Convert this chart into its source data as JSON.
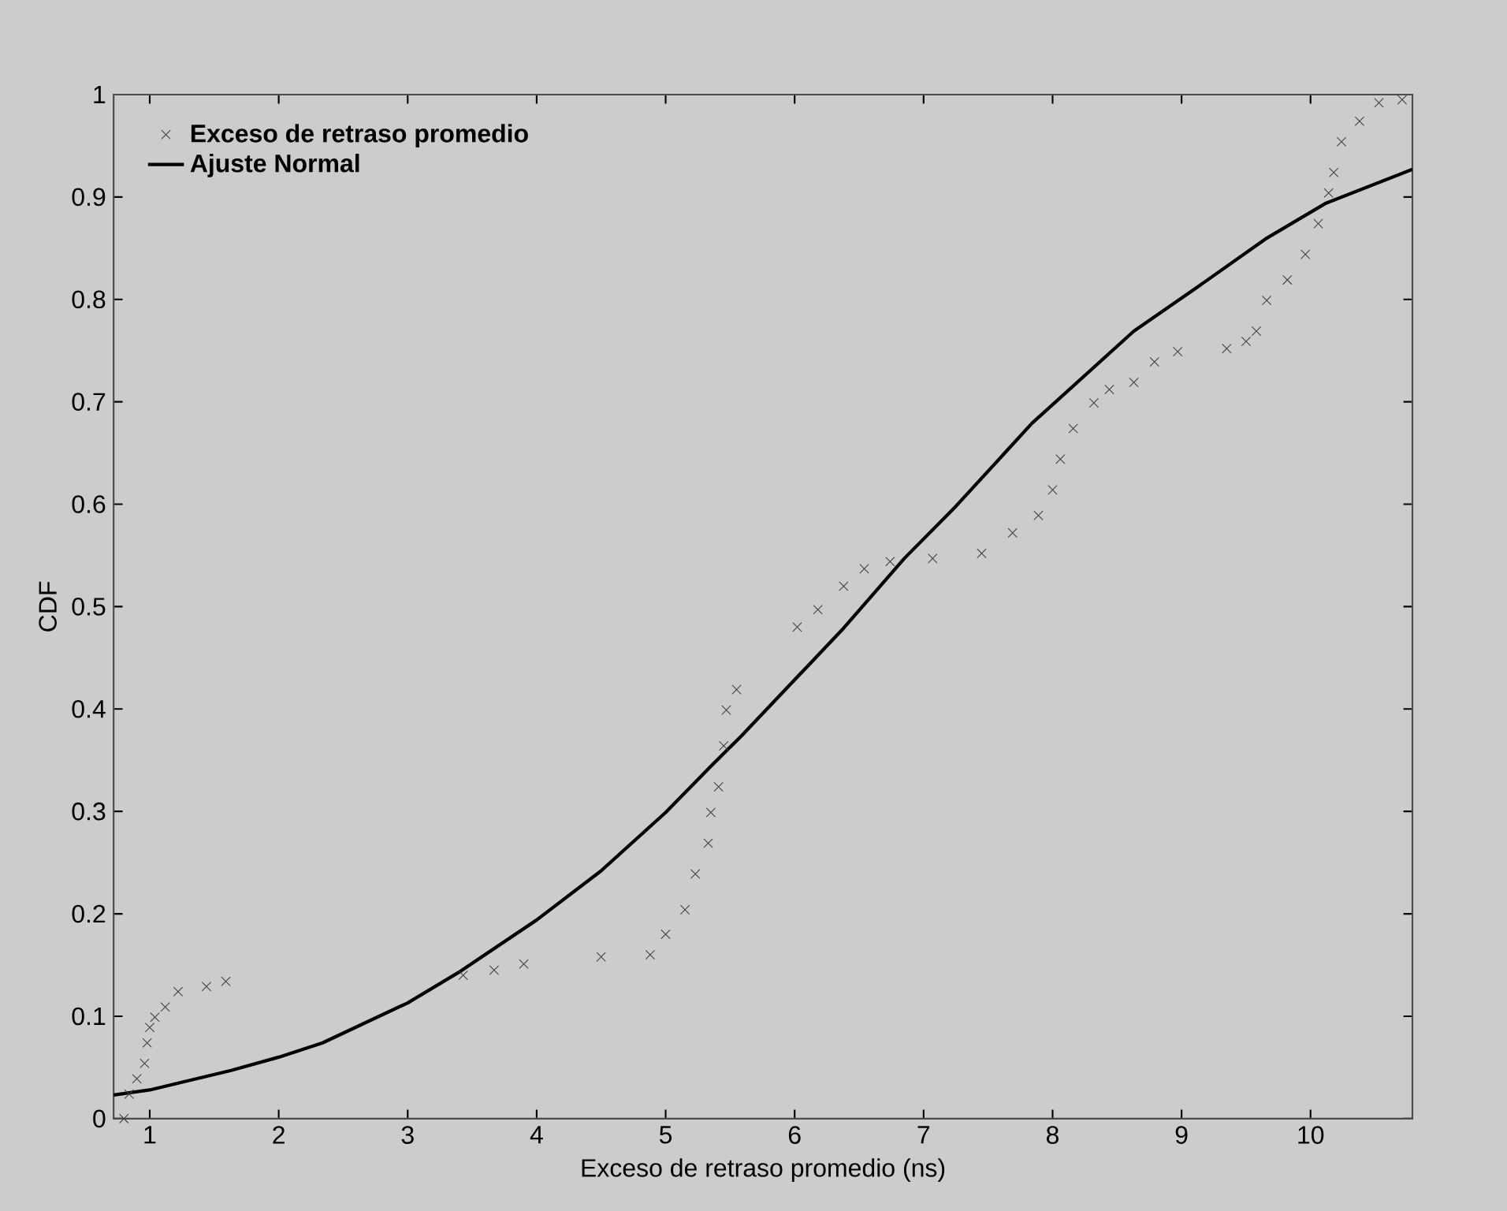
{
  "chart_data": {
    "type": "scatter",
    "xlabel": "Exceso de retraso promedio (ns)",
    "ylabel": "CDF",
    "xlim": [
      0.72,
      10.79
    ],
    "ylim": [
      0,
      1
    ],
    "xticks": [
      1,
      2,
      3,
      4,
      5,
      6,
      7,
      8,
      9,
      10
    ],
    "yticks": [
      0,
      0.1,
      0.2,
      0.3,
      0.4,
      0.5,
      0.6,
      0.7,
      0.8,
      0.9,
      1
    ],
    "legend": "top left",
    "grid": false,
    "series": [
      {
        "name": "Exceso de retraso promedio",
        "marker": "cross",
        "color": "#404040",
        "x": [
          0.8,
          0.84,
          0.9,
          0.96,
          0.98,
          1.0,
          1.04,
          1.12,
          1.22,
          1.44,
          1.59,
          3.43,
          3.67,
          3.9,
          4.5,
          4.88,
          5.0,
          5.15,
          5.23,
          5.33,
          5.35,
          5.41,
          5.45,
          5.47,
          5.55,
          6.02,
          6.18,
          6.38,
          6.54,
          6.74,
          7.07,
          7.45,
          7.69,
          7.89,
          8.0,
          8.06,
          8.16,
          8.32,
          8.44,
          8.63,
          8.79,
          8.97,
          9.35,
          9.5,
          9.58,
          9.66,
          9.82,
          9.96,
          10.06,
          10.14,
          10.18,
          10.24,
          10.38,
          10.53,
          10.71
        ],
        "values": [
          0.0,
          0.024,
          0.039,
          0.054,
          0.074,
          0.089,
          0.099,
          0.109,
          0.124,
          0.129,
          0.134,
          0.14,
          0.145,
          0.151,
          0.158,
          0.16,
          0.18,
          0.204,
          0.239,
          0.269,
          0.299,
          0.324,
          0.364,
          0.399,
          0.419,
          0.48,
          0.497,
          0.52,
          0.537,
          0.544,
          0.547,
          0.552,
          0.572,
          0.589,
          0.614,
          0.644,
          0.674,
          0.699,
          0.712,
          0.719,
          0.739,
          0.749,
          0.752,
          0.759,
          0.769,
          0.799,
          0.819,
          0.844,
          0.874,
          0.904,
          0.924,
          0.954,
          0.974,
          0.992,
          0.995
        ]
      },
      {
        "name": "Ajuste Normal",
        "type": "line",
        "marker": "none",
        "line_style": "solid",
        "color": "#000000",
        "x": [
          0.72,
          1.0,
          1.63,
          2.0,
          2.34,
          3.0,
          3.41,
          4.0,
          4.5,
          5.0,
          5.35,
          5.59,
          6.38,
          6.85,
          7.25,
          7.84,
          8.63,
          9.1,
          9.65,
          10.12,
          10.79
        ],
        "values": [
          0.023,
          0.028,
          0.047,
          0.06,
          0.074,
          0.113,
          0.144,
          0.194,
          0.242,
          0.299,
          0.344,
          0.374,
          0.479,
          0.547,
          0.598,
          0.679,
          0.769,
          0.81,
          0.859,
          0.894,
          0.927
        ]
      }
    ]
  }
}
